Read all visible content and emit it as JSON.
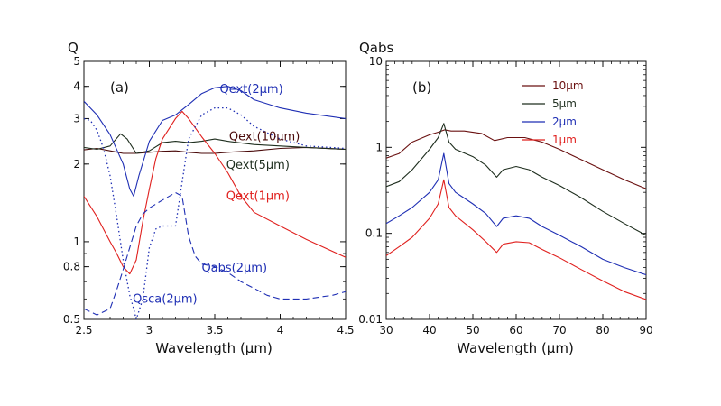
{
  "chart_data": [
    {
      "type": "line",
      "panel_label": "(a)",
      "ylabel": "Q",
      "xlabel": "Wavelength (μm)",
      "xlim": [
        2.5,
        4.5
      ],
      "ylim": [
        0.5,
        5
      ],
      "yscale": "log",
      "xticks": [
        2.5,
        3,
        3.5,
        4,
        4.5
      ],
      "xtick_labels": [
        "2.5",
        "3",
        "3.5",
        "4",
        "4.5"
      ],
      "yticks": [
        0.5,
        0.8,
        1,
        2,
        3,
        4,
        5
      ],
      "ytick_labels": [
        "0.5",
        "0.8",
        "1",
        "2",
        "3",
        "4",
        "5"
      ],
      "legend": "none",
      "grid": false,
      "series": [
        {
          "name": "Qext(10μm)",
          "color": "#4a0a0a",
          "style": "solid",
          "x": [
            2.5,
            2.6,
            2.7,
            2.8,
            2.9,
            3.0,
            3.1,
            3.2,
            3.3,
            3.4,
            3.5,
            3.6,
            3.8,
            4.0,
            4.2,
            4.5
          ],
          "y": [
            2.27,
            2.3,
            2.25,
            2.2,
            2.2,
            2.22,
            2.24,
            2.25,
            2.22,
            2.2,
            2.2,
            2.22,
            2.25,
            2.3,
            2.32,
            2.28
          ]
        },
        {
          "name": "Qext(5μm)",
          "color": "#1e2e1e",
          "style": "solid",
          "x": [
            2.5,
            2.6,
            2.7,
            2.78,
            2.83,
            2.9,
            3.0,
            3.1,
            3.2,
            3.3,
            3.4,
            3.5,
            3.6,
            3.8,
            4.0,
            4.2,
            4.5
          ],
          "y": [
            2.32,
            2.28,
            2.35,
            2.62,
            2.5,
            2.2,
            2.25,
            2.42,
            2.45,
            2.42,
            2.45,
            2.5,
            2.45,
            2.38,
            2.35,
            2.32,
            2.28
          ]
        },
        {
          "name": "Qext(2μm)",
          "color": "#1f2fb4",
          "style": "solid",
          "x": [
            2.5,
            2.6,
            2.7,
            2.8,
            2.85,
            2.88,
            2.92,
            3.0,
            3.1,
            3.2,
            3.3,
            3.4,
            3.5,
            3.6,
            3.7,
            3.8,
            4.0,
            4.2,
            4.5
          ],
          "y": [
            3.5,
            3.1,
            2.6,
            2.0,
            1.6,
            1.5,
            1.8,
            2.45,
            2.95,
            3.1,
            3.4,
            3.75,
            3.95,
            4.0,
            3.85,
            3.55,
            3.3,
            3.15,
            3.0
          ]
        },
        {
          "name": "Qext(1μm)",
          "color": "#e0201e",
          "style": "solid",
          "x": [
            2.5,
            2.6,
            2.7,
            2.75,
            2.8,
            2.85,
            2.9,
            2.95,
            3.0,
            3.05,
            3.1,
            3.2,
            3.25,
            3.3,
            3.4,
            3.5,
            3.6,
            3.7,
            3.8,
            4.0,
            4.2,
            4.5
          ],
          "y": [
            1.5,
            1.25,
            1.0,
            0.9,
            0.8,
            0.75,
            0.85,
            1.2,
            1.6,
            2.1,
            2.5,
            3.0,
            3.2,
            3.0,
            2.55,
            2.2,
            1.85,
            1.5,
            1.3,
            1.15,
            1.02,
            0.87
          ]
        },
        {
          "name": "Qsca(2μm)",
          "color": "#1f2fb4",
          "style": "dotted",
          "x": [
            2.5,
            2.55,
            2.6,
            2.65,
            2.7,
            2.75,
            2.8,
            2.85,
            2.88,
            2.9,
            2.95,
            3.0,
            3.05,
            3.1,
            3.2,
            3.3,
            3.4,
            3.5,
            3.6,
            3.7,
            3.8,
            4.0,
            4.2,
            4.5
          ],
          "y": [
            3.0,
            2.95,
            2.7,
            2.3,
            1.8,
            1.25,
            0.85,
            0.62,
            0.55,
            0.5,
            0.6,
            0.95,
            1.12,
            1.15,
            1.15,
            2.5,
            3.1,
            3.3,
            3.3,
            3.1,
            2.8,
            2.5,
            2.35,
            2.3
          ]
        },
        {
          "name": "Qabs(2μm)",
          "color": "#1f2fb4",
          "style": "dashed",
          "x": [
            2.5,
            2.6,
            2.7,
            2.75,
            2.8,
            2.85,
            2.9,
            2.95,
            3.0,
            3.1,
            3.2,
            3.25,
            3.3,
            3.35,
            3.4,
            3.5,
            3.6,
            3.7,
            3.8,
            3.9,
            4.0,
            4.2,
            4.4,
            4.5
          ],
          "y": [
            0.55,
            0.52,
            0.55,
            0.65,
            0.78,
            0.95,
            1.15,
            1.28,
            1.35,
            1.45,
            1.55,
            1.5,
            1.05,
            0.88,
            0.82,
            0.8,
            0.76,
            0.7,
            0.66,
            0.62,
            0.6,
            0.6,
            0.62,
            0.64
          ]
        }
      ],
      "annotations": [
        {
          "text": "Qext(2μm)",
          "color": "#1f2fb4",
          "x": 3.78,
          "y": 3.9
        },
        {
          "text": "Qext(10μm)",
          "color": "#4a0a0a",
          "x": 3.88,
          "y": 2.55
        },
        {
          "text": "Qext(5μm)",
          "color": "#1e2e1e",
          "x": 3.83,
          "y": 1.98
        },
        {
          "text": "Qext(1μm)",
          "color": "#e0201e",
          "x": 3.83,
          "y": 1.5
        },
        {
          "text": "Qabs(2μm)",
          "color": "#1f2fb4",
          "x": 3.65,
          "y": 0.79
        },
        {
          "text": "Qsca(2μm)",
          "color": "#1f2fb4",
          "x": 3.12,
          "y": 0.6
        }
      ]
    },
    {
      "type": "line",
      "panel_label": "(b)",
      "ylabel": "Qabs",
      "xlabel": "Wavelength (μm)",
      "xlim": [
        30,
        90
      ],
      "ylim": [
        0.01,
        10
      ],
      "yscale": "log",
      "xticks": [
        30,
        40,
        50,
        60,
        70,
        80,
        90
      ],
      "xtick_labels": [
        "30",
        "40",
        "50",
        "60",
        "70",
        "80",
        "90"
      ],
      "yticks": [
        0.01,
        0.1,
        1,
        10
      ],
      "ytick_labels": [
        "0.01",
        "0.1",
        "1",
        "10"
      ],
      "legend": "top-right",
      "grid": false,
      "series": [
        {
          "name": "10μm",
          "color": "#6a1010",
          "style": "solid",
          "x": [
            30,
            33,
            36,
            40,
            42,
            43.5,
            45,
            48,
            52,
            55,
            58,
            62,
            66,
            70,
            75,
            80,
            85,
            90
          ],
          "y": [
            0.75,
            0.85,
            1.15,
            1.4,
            1.5,
            1.6,
            1.55,
            1.55,
            1.45,
            1.2,
            1.3,
            1.3,
            1.15,
            0.95,
            0.72,
            0.55,
            0.42,
            0.33
          ]
        },
        {
          "name": "5μm",
          "color": "#1e2e1e",
          "style": "solid",
          "x": [
            30,
            33,
            36,
            40,
            42,
            43.3,
            44.5,
            46,
            50,
            53,
            55.5,
            57,
            60,
            63,
            66,
            70,
            75,
            80,
            85,
            90
          ],
          "y": [
            0.35,
            0.4,
            0.55,
            0.95,
            1.3,
            1.9,
            1.15,
            0.95,
            0.78,
            0.62,
            0.45,
            0.55,
            0.6,
            0.55,
            0.45,
            0.36,
            0.26,
            0.18,
            0.13,
            0.095
          ]
        },
        {
          "name": "2μm",
          "color": "#1f2fb4",
          "style": "solid",
          "x": [
            30,
            33,
            36,
            40,
            42,
            43.3,
            44.5,
            46,
            50,
            53,
            55.5,
            57,
            60,
            63,
            66,
            70,
            75,
            80,
            85,
            90
          ],
          "y": [
            0.13,
            0.16,
            0.2,
            0.3,
            0.42,
            0.85,
            0.38,
            0.3,
            0.22,
            0.17,
            0.12,
            0.15,
            0.16,
            0.15,
            0.12,
            0.095,
            0.07,
            0.05,
            0.04,
            0.033
          ]
        },
        {
          "name": "1μm",
          "color": "#e0201e",
          "style": "solid",
          "x": [
            30,
            33,
            36,
            40,
            42,
            43.3,
            44.5,
            46,
            50,
            53,
            55.5,
            57,
            60,
            63,
            66,
            70,
            75,
            80,
            85,
            90
          ],
          "y": [
            0.055,
            0.07,
            0.09,
            0.15,
            0.22,
            0.42,
            0.2,
            0.16,
            0.11,
            0.08,
            0.06,
            0.075,
            0.08,
            0.078,
            0.065,
            0.052,
            0.038,
            0.028,
            0.021,
            0.017
          ]
        }
      ]
    }
  ]
}
